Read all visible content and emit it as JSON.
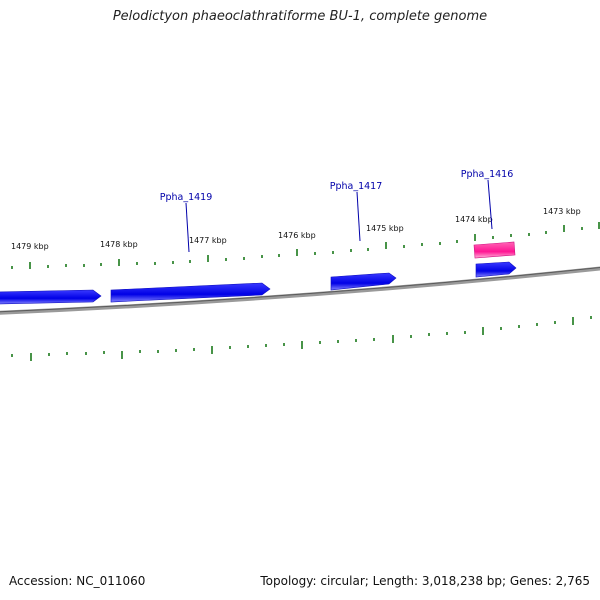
{
  "title": "Pelodictyon phaeoclathratiforme BU-1, complete genome",
  "footer": {
    "accession": "Accession: NC_011060",
    "summary": "Topology: circular; Length: 3,018,238 bp; Genes: 2,765"
  },
  "colors": {
    "backbone": "#888888",
    "tick": "#1a7a1a",
    "cds": "#0000ee",
    "rna": "#ff1493",
    "label": "#0000aa"
  },
  "map": {
    "kbp_labels": [
      "1479 kbp",
      "1478 kbp",
      "1477 kbp",
      "1476 kbp",
      "1475 kbp",
      "1474 kbp",
      "1473 kbp"
    ],
    "gene_labels": [
      "Ppha_1419",
      "Ppha_1417",
      "Ppha_1416"
    ]
  }
}
